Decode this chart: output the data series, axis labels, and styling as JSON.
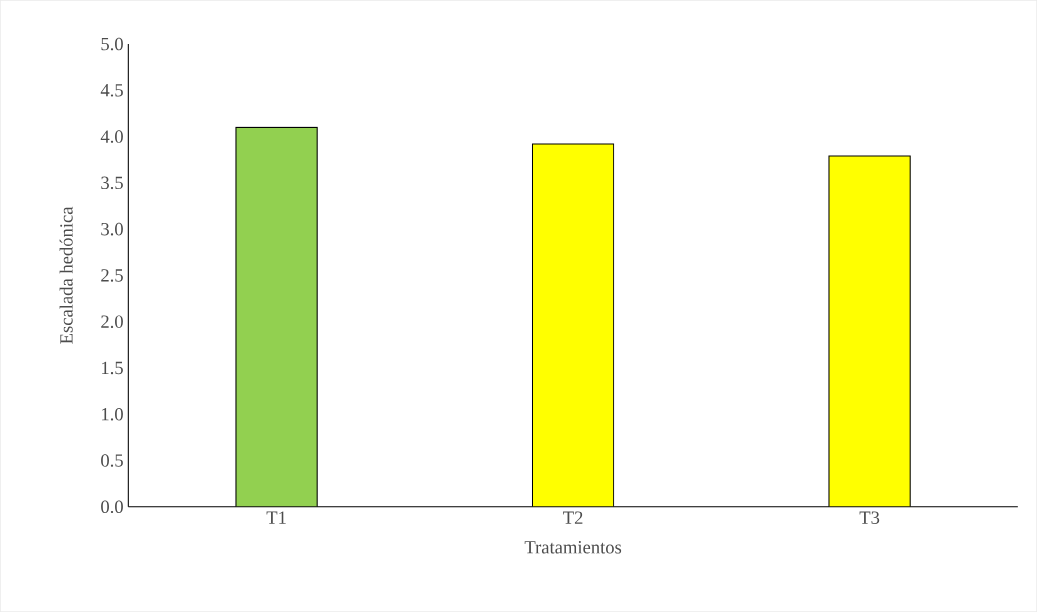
{
  "chart_data": {
    "type": "bar",
    "xlabel": "Tratamientos",
    "ylabel": "Escalada hedónica",
    "categories": [
      "T1",
      "T2",
      "T3"
    ],
    "values": [
      4.1,
      3.92,
      3.79
    ],
    "colors": [
      "#92d050",
      "#ffff00",
      "#ffff00"
    ],
    "ylim": [
      0,
      5
    ],
    "yticks": [
      {
        "value": 0,
        "label": "0.0"
      },
      {
        "value": 0.5,
        "label": "0.5"
      },
      {
        "value": 1,
        "label": "1.0"
      },
      {
        "value": 1.5,
        "label": "1.5"
      },
      {
        "value": 2,
        "label": "2.0"
      },
      {
        "value": 2.5,
        "label": "2.5"
      },
      {
        "value": 3,
        "label": "3.0"
      },
      {
        "value": 3.5,
        "label": "3.5"
      },
      {
        "value": 4,
        "label": "4.0"
      },
      {
        "value": 4.5,
        "label": "4.5"
      },
      {
        "value": 5,
        "label": "5.0"
      }
    ],
    "grid": false
  }
}
